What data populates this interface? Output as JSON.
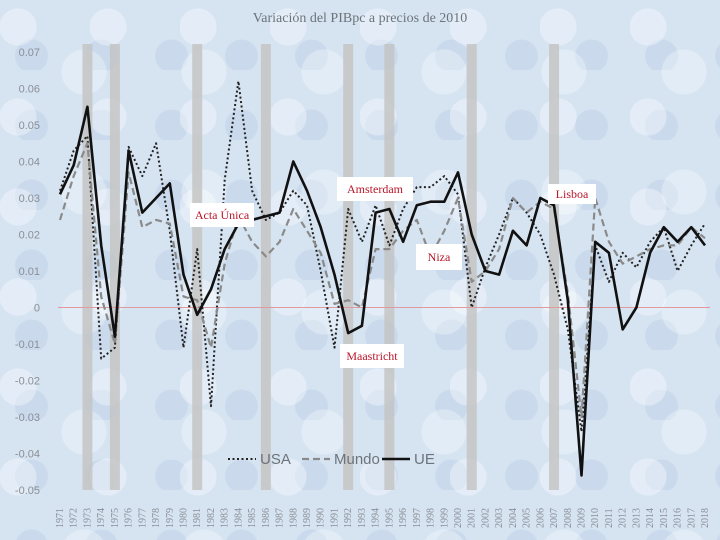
{
  "chart_data": {
    "type": "line",
    "title": "Variación del PIBpc a precios de 2010",
    "xlabel": "",
    "ylabel": "",
    "ylim": [
      -0.05,
      0.07
    ],
    "yticks": [
      "0.07",
      "0.06",
      "0.05",
      "0.04",
      "0.03",
      "0.02",
      "0.01",
      "0",
      "-0.01",
      "-0.02",
      "-0.03",
      "-0.04",
      "-0.05"
    ],
    "x": [
      1971,
      1972,
      1973,
      1974,
      1975,
      1976,
      1977,
      1978,
      1979,
      1980,
      1981,
      1982,
      1983,
      1984,
      1985,
      1986,
      1987,
      1988,
      1989,
      1990,
      1991,
      1992,
      1993,
      1994,
      1995,
      1996,
      1997,
      1998,
      1999,
      2000,
      2001,
      2002,
      2003,
      2004,
      2005,
      2006,
      2007,
      2008,
      2009,
      2010,
      2011,
      2012,
      2013,
      2014,
      2015,
      2016,
      2017,
      2018
    ],
    "highlight_years": [
      1973,
      1975,
      1981,
      1986,
      1992,
      1995,
      2001,
      2007
    ],
    "series": [
      {
        "name": "USA",
        "style": "dotted",
        "color": "#222222",
        "values": [
          0.032,
          0.043,
          0.047,
          -0.014,
          -0.011,
          0.044,
          0.036,
          0.045,
          0.021,
          -0.011,
          0.016,
          -0.027,
          0.035,
          0.062,
          0.032,
          0.024,
          0.026,
          0.032,
          0.028,
          0.01,
          -0.011,
          0.027,
          0.018,
          0.028,
          0.017,
          0.027,
          0.033,
          0.033,
          0.036,
          0.031,
          0.0,
          0.011,
          0.02,
          0.03,
          0.026,
          0.02,
          0.009,
          -0.006,
          -0.034,
          0.017,
          0.007,
          0.015,
          0.011,
          0.018,
          0.022,
          0.01,
          0.017,
          0.023
        ]
      },
      {
        "name": "Mundo",
        "style": "dashed",
        "color": "#8a8a8a",
        "values": [
          0.024,
          0.036,
          0.045,
          0.003,
          -0.01,
          0.037,
          0.022,
          0.024,
          0.023,
          0.003,
          0.002,
          -0.011,
          0.012,
          0.025,
          0.018,
          0.014,
          0.018,
          0.027,
          0.021,
          0.015,
          0.001,
          0.002,
          0.0,
          0.016,
          0.016,
          0.021,
          0.024,
          0.014,
          0.021,
          0.03,
          0.007,
          0.01,
          0.016,
          0.03,
          0.026,
          0.029,
          0.027,
          0.004,
          -0.03,
          0.03,
          0.018,
          0.012,
          0.014,
          0.016,
          0.017,
          0.017,
          0.022,
          0.019
        ]
      },
      {
        "name": "UE",
        "style": "solid",
        "color": "#111111",
        "values": [
          0.031,
          0.039,
          0.055,
          0.017,
          -0.008,
          0.043,
          0.026,
          0.03,
          0.034,
          0.009,
          -0.002,
          0.005,
          0.016,
          0.023,
          0.024,
          0.025,
          0.026,
          0.04,
          0.032,
          0.022,
          0.009,
          -0.007,
          -0.005,
          0.026,
          0.027,
          0.018,
          0.028,
          0.029,
          0.029,
          0.037,
          0.02,
          0.01,
          0.009,
          0.021,
          0.017,
          0.03,
          0.028,
          0.002,
          -0.046,
          0.018,
          0.015,
          -0.006,
          0.0,
          0.015,
          0.022,
          0.018,
          0.022,
          0.017
        ]
      }
    ],
    "annotations": [
      {
        "label": "Acta Única"
      },
      {
        "label": "Amsterdam"
      },
      {
        "label": "Maastricht"
      },
      {
        "label": "Niza"
      },
      {
        "label": "Lisboa"
      }
    ],
    "legend": {
      "items": [
        "USA",
        "Mundo",
        "UE"
      ],
      "position": "bottom-center"
    }
  }
}
